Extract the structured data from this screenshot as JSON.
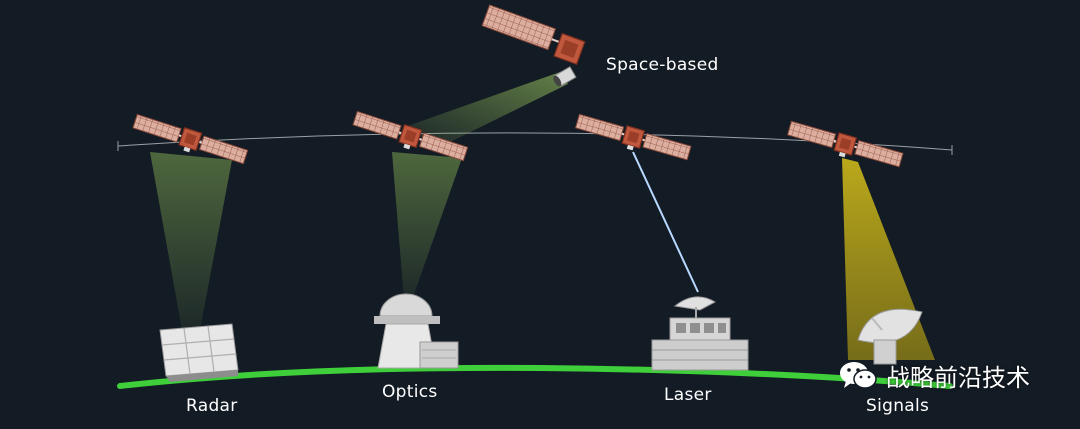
{
  "labels": {
    "space_based": "Space-based",
    "radar": "Radar",
    "optics": "Optics",
    "laser": "Laser",
    "signals": "Signals"
  },
  "watermark": {
    "icon": "wechat-icon",
    "text": "战略前沿技术"
  },
  "colors": {
    "background": "#131b24",
    "ground": "#3ecf3a",
    "panel": "#d9a594",
    "satellite_body": "#c0583e",
    "green_beam": "#8fae5a",
    "yellow_beam": "#d8c21a",
    "laser_beam": "#b8d8ff"
  }
}
